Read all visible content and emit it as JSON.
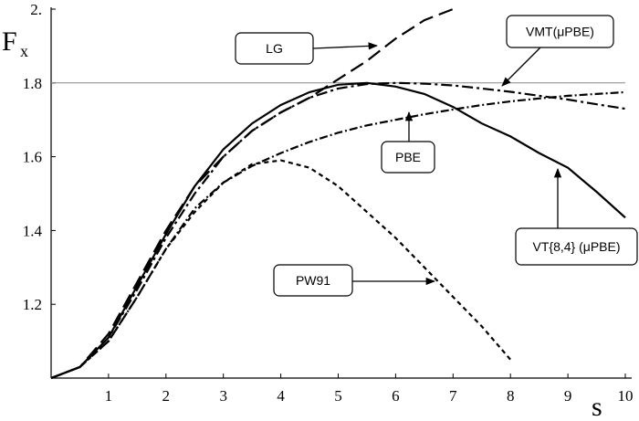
{
  "chart_data": {
    "type": "line",
    "y_label": "F",
    "y_label_subscript": "x",
    "x_label": "s",
    "xlim": [
      0,
      10
    ],
    "ylim": [
      1,
      2
    ],
    "xticks": [
      1,
      2,
      3,
      4,
      5,
      6,
      7,
      8,
      9,
      10
    ],
    "yticks": [
      1.2,
      1.4,
      1.6,
      1.8,
      {
        "value": 2,
        "label": "2."
      }
    ],
    "reference_line": 1.8,
    "x": [
      0,
      0.5,
      1,
      1.5,
      2,
      2.5,
      3,
      3.5,
      4,
      4.5,
      5,
      5.5,
      6,
      6.5,
      7,
      7.5,
      8,
      8.5,
      9,
      9.5,
      10
    ],
    "series": [
      {
        "name": "LG",
        "color": "#000000",
        "dash": "16,7",
        "values": [
          1.0,
          1.03,
          1.12,
          1.26,
          1.4,
          1.52,
          1.6,
          1.67,
          1.72,
          1.76,
          1.81,
          1.86,
          1.92,
          1.97,
          2.0,
          null,
          null,
          null,
          null,
          null,
          null
        ]
      },
      {
        "name": "VMT(μPBE)",
        "color": "#000000",
        "dash": "12,4,3,4",
        "values": [
          1.0,
          1.03,
          1.11,
          1.24,
          1.38,
          1.5,
          1.6,
          1.67,
          1.72,
          1.76,
          1.785,
          1.797,
          1.8,
          1.798,
          1.793,
          1.785,
          1.776,
          1.765,
          1.755,
          1.742,
          1.73
        ]
      },
      {
        "name": "PBE",
        "color": "#000000",
        "dash": "9,3,2,3",
        "values": [
          1.0,
          1.03,
          1.1,
          1.22,
          1.35,
          1.46,
          1.53,
          1.575,
          1.61,
          1.64,
          1.665,
          1.685,
          1.7,
          1.715,
          1.728,
          1.74,
          1.75,
          1.758,
          1.765,
          1.77,
          1.775
        ]
      },
      {
        "name": "VT{8,4} (μPBE)",
        "color": "#000000",
        "dash": "none",
        "values": [
          1.0,
          1.03,
          1.11,
          1.25,
          1.39,
          1.52,
          1.62,
          1.69,
          1.74,
          1.775,
          1.795,
          1.8,
          1.79,
          1.77,
          1.735,
          1.69,
          1.655,
          1.61,
          1.57,
          1.505,
          1.435
        ]
      },
      {
        "name": "PW91",
        "color": "#000000",
        "dash": "5,4",
        "values": [
          1.0,
          1.03,
          1.1,
          1.22,
          1.35,
          1.45,
          1.53,
          1.58,
          1.59,
          1.57,
          1.52,
          1.45,
          1.38,
          1.3,
          1.22,
          1.14,
          1.05,
          null,
          null,
          null,
          null
        ]
      }
    ]
  }
}
